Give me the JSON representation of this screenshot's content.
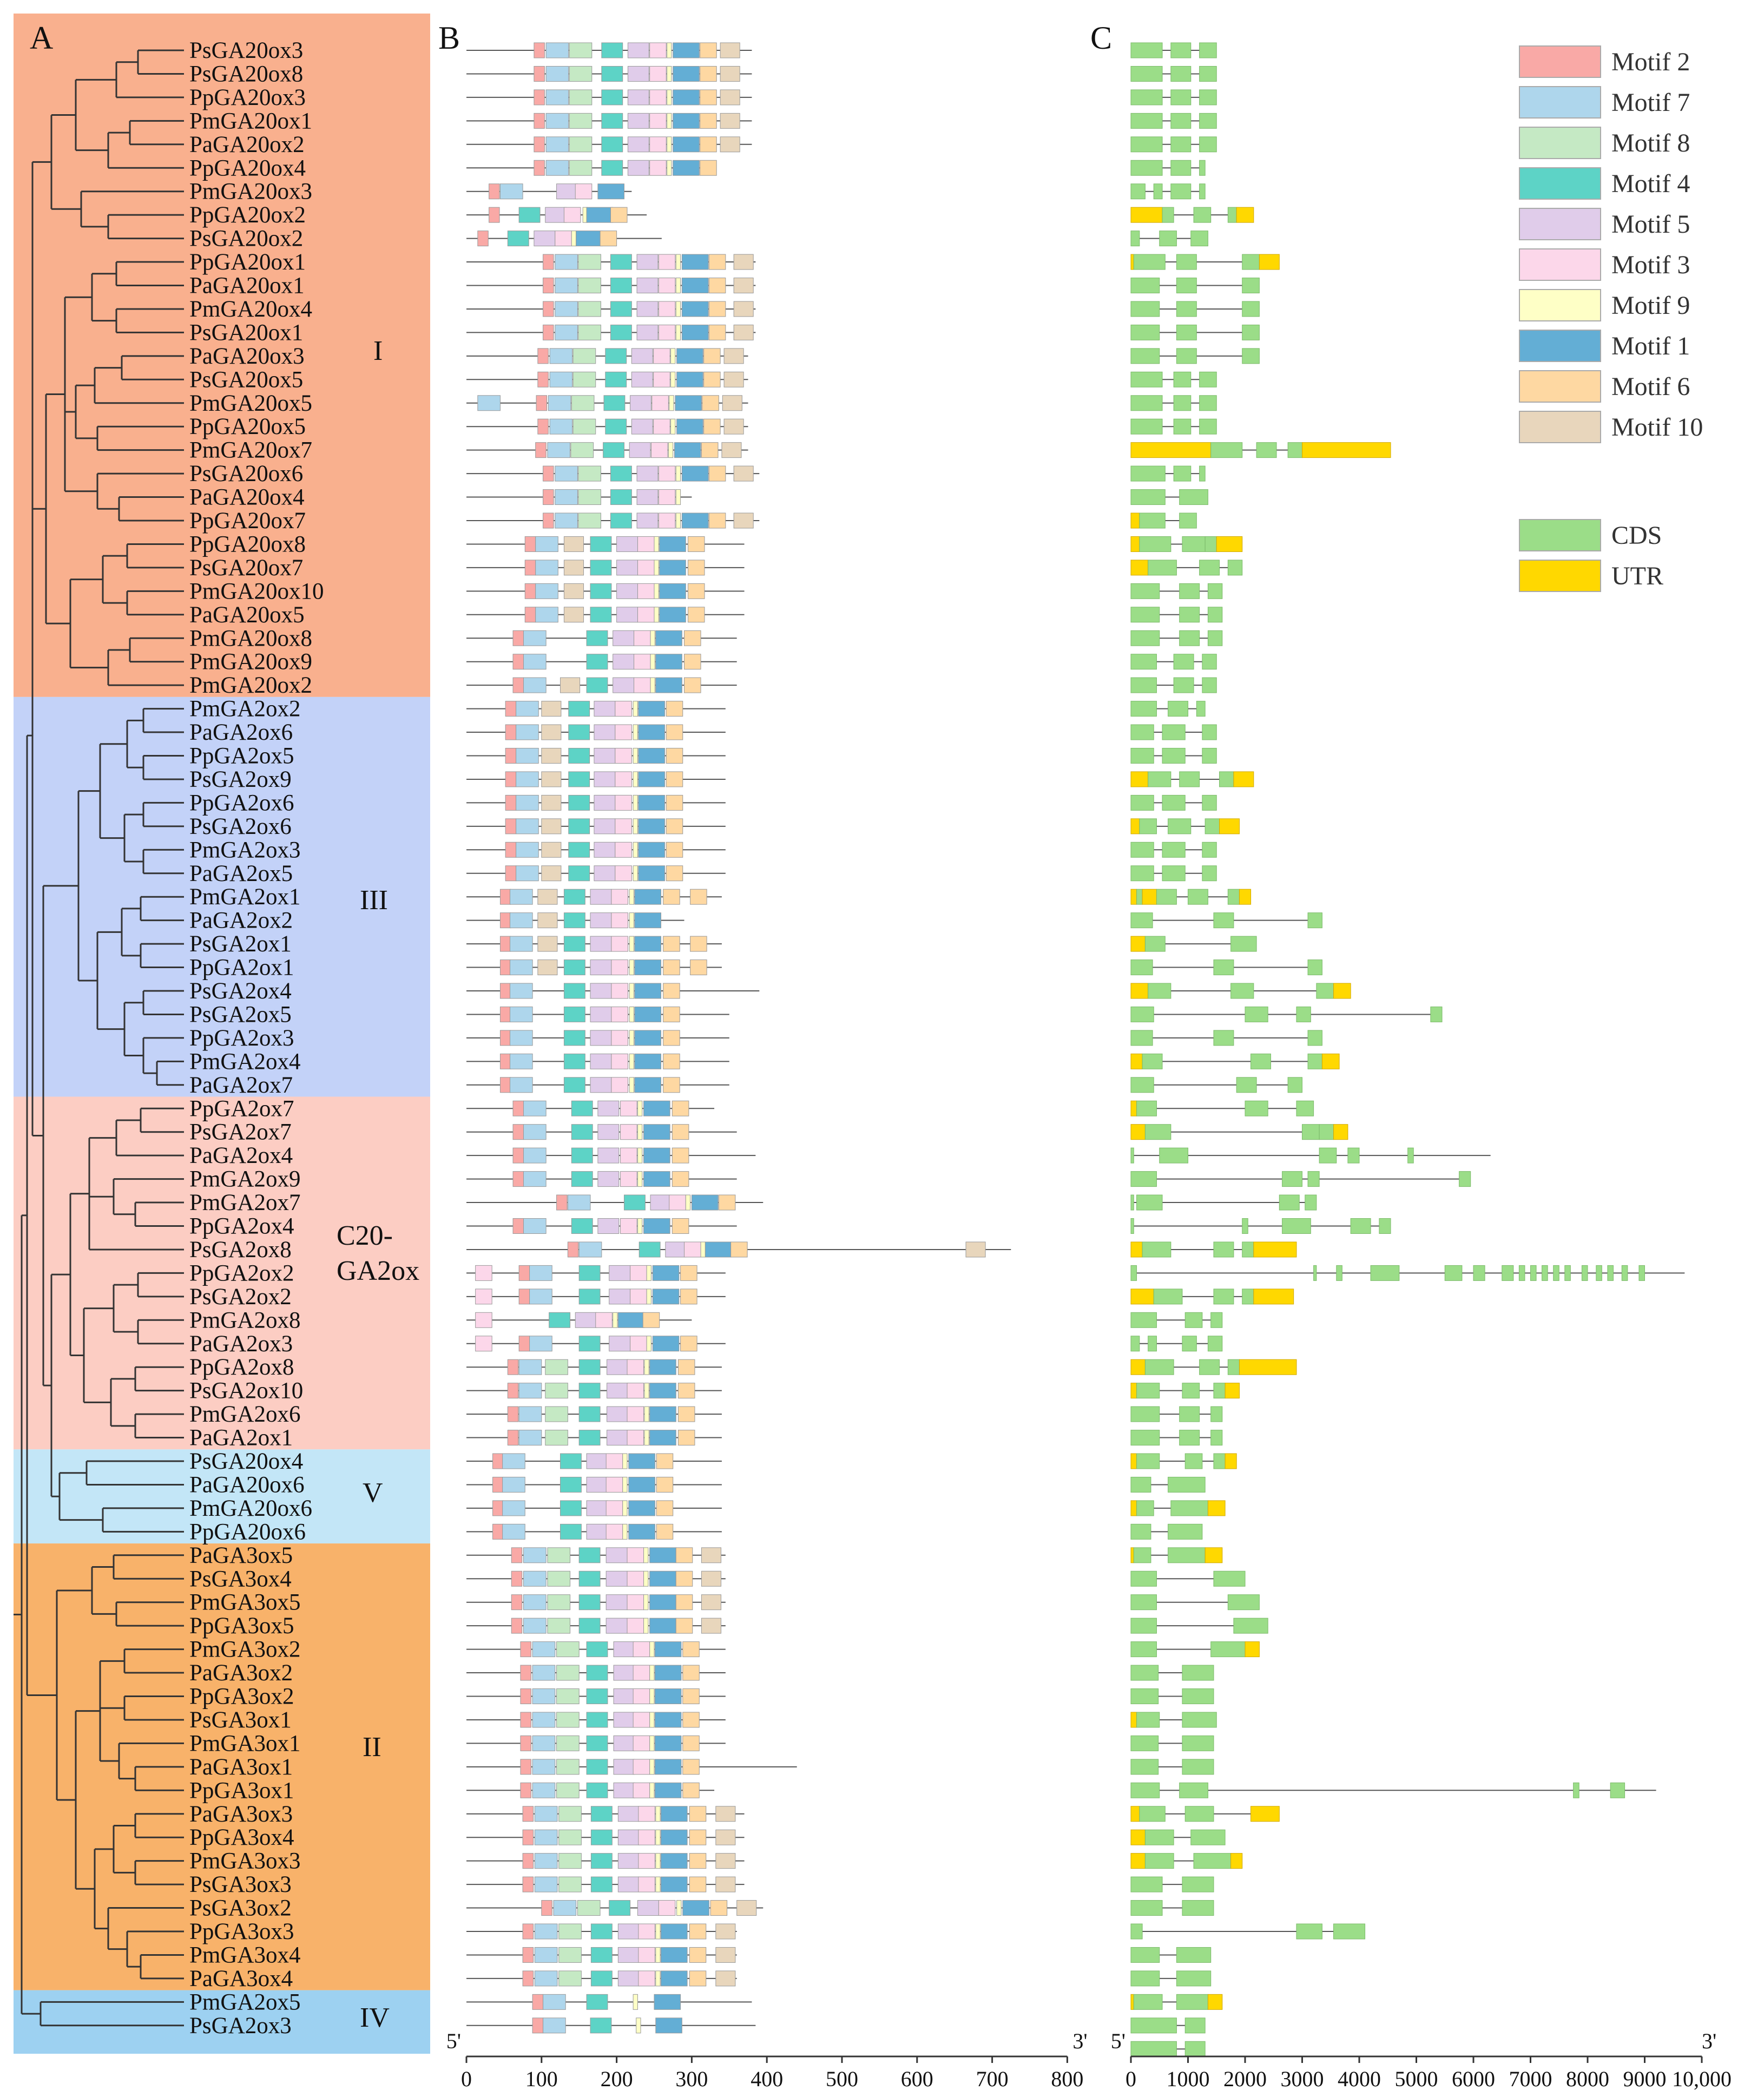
{
  "panels": {
    "A": "A",
    "B": "B",
    "C": "C"
  },
  "clade_labels": {
    "I": "I",
    "III": "III",
    "C20_line1": "C20-",
    "C20_line2": "GA2ox",
    "V": "V",
    "II": "II",
    "IV": "IV"
  },
  "clade_colors": {
    "I": "#F9B08E",
    "III": "#C3D2F8",
    "C20": "#FCCDC3",
    "V": "#C3E6F7",
    "II": "#F8B26A",
    "IV": "#9DD1F1"
  },
  "genes": [
    "PsGA20ox3",
    "PsGA20ox8",
    "PpGA20ox3",
    "PmGA20ox1",
    "PaGA20ox2",
    "PpGA20ox4",
    "PmGA20ox3",
    "PpGA20ox2",
    "PsGA20ox2",
    "PpGA20ox1",
    "PaGA20ox1",
    "PmGA20ox4",
    "PsGA20ox1",
    "PaGA20ox3",
    "PsGA20ox5",
    "PmGA20ox5",
    "PpGA20ox5",
    "PmGA20ox7",
    "PsGA20ox6",
    "PaGA20ox4",
    "PpGA20ox7",
    "PpGA20ox8",
    "PsGA20ox7",
    "PmGA20ox10",
    "PaGA20ox5",
    "PmGA20ox8",
    "PmGA20ox9",
    "PmGA20ox2",
    "PmGA2ox2",
    "PaGA2ox6",
    "PpGA2ox5",
    "PsGA2ox9",
    "PpGA2ox6",
    "PsGA2ox6",
    "PmGA2ox3",
    "PaGA2ox5",
    "PmGA2ox1",
    "PaGA2ox2",
    "PsGA2ox1",
    "PpGA2ox1",
    "PsGA2ox4",
    "PsGA2ox5",
    "PpGA2ox3",
    "PmGA2ox4",
    "PaGA2ox7",
    "PpGA2ox7",
    "PsGA2ox7",
    "PaGA2ox4",
    "PmGA2ox9",
    "PmGA2ox7",
    "PpGA2ox4",
    "PsGA2ox8",
    "PpGA2ox2",
    "PsGA2ox2",
    "PmGA2ox8",
    "PaGA2ox3",
    "PpGA2ox8",
    "PsGA2ox10",
    "PmGA2ox6",
    "PaGA2ox1",
    "PsGA20ox4",
    "PaGA20ox6",
    "PmGA20ox6",
    "PpGA20ox6",
    "PaGA3ox5",
    "PsGA3ox4",
    "PmGA3ox5",
    "PpGA3ox5",
    "PmGA3ox2",
    "PaGA3ox2",
    "PpGA3ox2",
    "PsGA3ox1",
    "PmGA3ox1",
    "PaGA3ox1",
    "PpGA3ox1",
    "PaGA3ox3",
    "PpGA3ox4",
    "PmGA3ox3",
    "PsGA3ox3",
    "PsGA3ox2",
    "PpGA3ox3",
    "PmGA3ox4",
    "PaGA3ox4",
    "PmGA2ox5",
    "PsGA2ox3"
  ],
  "motif_axis": {
    "ticks": [
      "0",
      "100",
      "200",
      "300",
      "400",
      "500",
      "600",
      "700",
      "800"
    ],
    "start_label": "5'",
    "end_label": "3'"
  },
  "gene_axis": {
    "ticks": [
      "0",
      "1000",
      "2000",
      "3000",
      "4000",
      "5000",
      "6000",
      "7000",
      "8000",
      "9000",
      "10,000"
    ],
    "start_label": "5'",
    "end_label": "3'"
  },
  "motif_legend": [
    {
      "name": "Motif 2",
      "color": "#F9A9A6"
    },
    {
      "name": "Motif 7",
      "color": "#AED6EC"
    },
    {
      "name": "Motif 8",
      "color": "#C5E9C4"
    },
    {
      "name": "Motif 4",
      "color": "#5DD3C6"
    },
    {
      "name": "Motif 5",
      "color": "#E0CCEA"
    },
    {
      "name": "Motif 3",
      "color": "#FCD7EA"
    },
    {
      "name": "Motif 9",
      "color": "#FEFFC6"
    },
    {
      "name": "Motif 1",
      "color": "#63AED5"
    },
    {
      "name": "Motif 6",
      "color": "#FED8A2"
    },
    {
      "name": "Motif 10",
      "color": "#E8D6BC"
    }
  ],
  "structure_legend": [
    {
      "name": "CDS",
      "color": "#9BDD88"
    },
    {
      "name": "UTR",
      "color": "#FFD800"
    }
  ]
}
